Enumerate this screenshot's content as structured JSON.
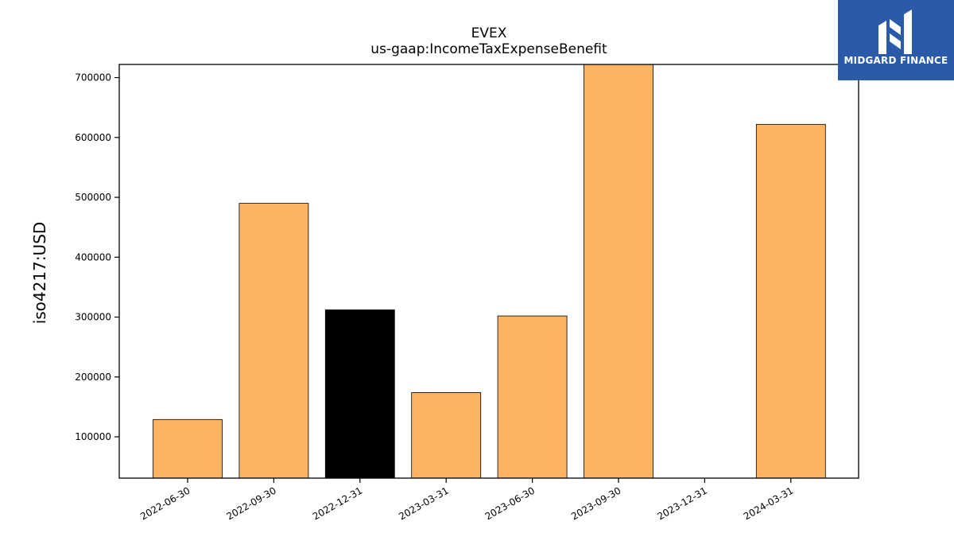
{
  "chart_data": {
    "type": "bar",
    "title": "EVEX",
    "subtitle": "us-gaap:IncomeTaxExpenseBenefit",
    "xlabel": "",
    "ylabel": "iso4217:USD",
    "categories": [
      "2022-06-30",
      "2022-09-30",
      "2022-12-31",
      "2023-03-31",
      "2023-06-30",
      "2023-09-30",
      "2023-12-31",
      "2024-03-31"
    ],
    "values": [
      129000,
      490000,
      312000,
      174000,
      302000,
      722000,
      null,
      622000
    ],
    "bar_colors": [
      "#fdb462",
      "#fdb462",
      "#000000",
      "#fdb462",
      "#fdb462",
      "#fdb462",
      "#fdb462",
      "#fdb462"
    ],
    "ylim": [
      31000,
      722000
    ],
    "yticks": [
      100000,
      200000,
      300000,
      400000,
      500000,
      600000,
      700000
    ],
    "grid": false,
    "legend": "none"
  },
  "logo": {
    "text": "MIDGARD FINANCE",
    "icon": "midgard-finance-logo-icon",
    "background": "#2a5aa8"
  }
}
